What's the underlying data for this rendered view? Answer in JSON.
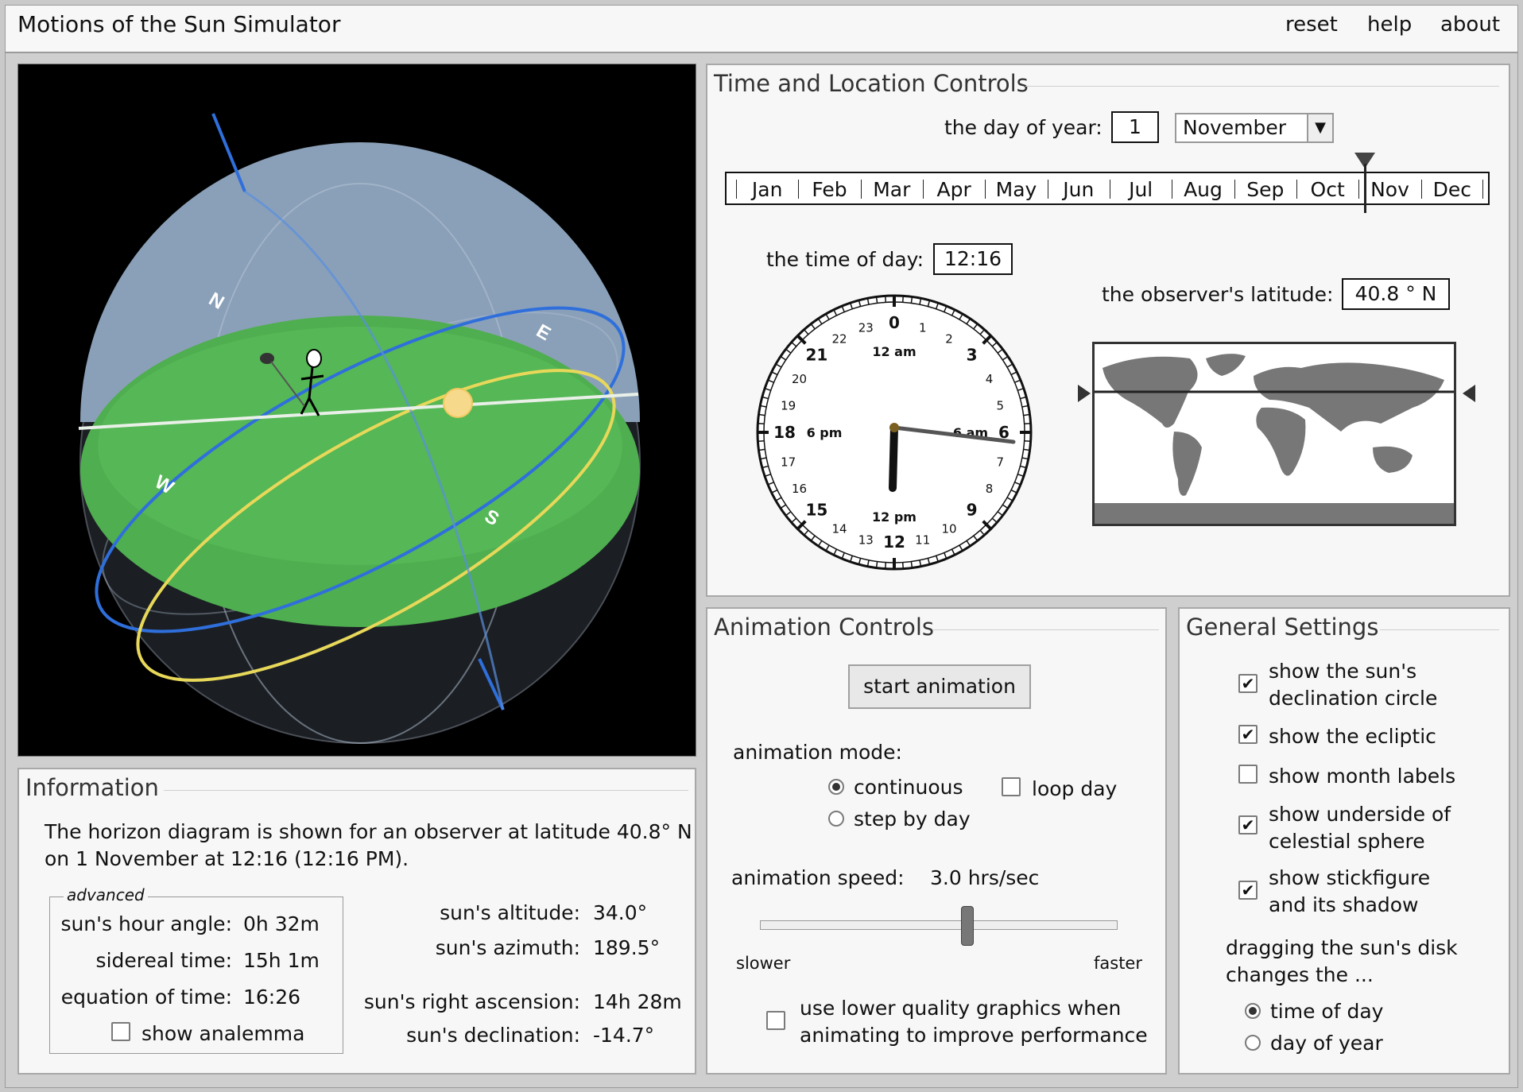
{
  "app": {
    "title": "Motions of the Sun Simulator",
    "nav": {
      "reset": "reset",
      "help": "help",
      "about": "about"
    }
  },
  "view3d": {
    "directions": {
      "n": "N",
      "e": "E",
      "s": "S",
      "w": "W"
    }
  },
  "time_location": {
    "title": "Time and Location Controls",
    "day_label": "the day of year:",
    "day_value": "1",
    "month_selected": "November",
    "months": [
      "Jan",
      "Feb",
      "Mar",
      "Apr",
      "May",
      "Jun",
      "Jul",
      "Aug",
      "Sep",
      "Oct",
      "Nov",
      "Dec"
    ],
    "time_label": "the time of day:",
    "time_value": "12:16",
    "latitude_label": "the observer's latitude:",
    "latitude_value": "40.8 ° N",
    "clock": {
      "hour_numbers": [
        "0",
        "1",
        "2",
        "3",
        "4",
        "5",
        "6",
        "7",
        "8",
        "9",
        "10",
        "11",
        "12",
        "13",
        "14",
        "15",
        "16",
        "17",
        "18",
        "19",
        "20",
        "21",
        "22",
        "23"
      ],
      "labels": {
        "am12": "12 am",
        "am6": "6 am",
        "pm12": "12 pm",
        "pm6": "6 pm"
      }
    }
  },
  "animation": {
    "title": "Animation Controls",
    "start_button": "start animation",
    "mode_label": "animation mode:",
    "continuous": "continuous",
    "step_by_day": "step by day",
    "loop_day": "loop day",
    "speed_label": "animation speed:",
    "speed_value": "3.0 hrs/sec",
    "speed_fraction": 0.58,
    "slower": "slower",
    "faster": "faster",
    "low_quality_1": "use lower quality graphics when",
    "low_quality_2": "animating to improve performance"
  },
  "general": {
    "title": "General Settings",
    "opt1a": "show the sun's",
    "opt1b": "declination circle",
    "opt2": "show the ecliptic",
    "opt3": "show month labels",
    "opt4a": "show underside of",
    "opt4b": "celestial sphere",
    "opt5a": "show stickfigure",
    "opt5b": "and its shadow",
    "drag_a": "dragging the sun's disk",
    "drag_b": "changes the ...",
    "drag_time": "time of day",
    "drag_year": "day of year",
    "checkmark": "✔"
  },
  "information": {
    "title": "Information",
    "desc1": "The horizon diagram is shown for an observer at latitude 40.8° N",
    "desc2": "on 1 November at 12:16 (12:16 PM).",
    "advanced": "advanced",
    "hour_angle_label": "sun's hour angle:",
    "hour_angle": "0h 32m",
    "sidereal_label": "sidereal time:",
    "sidereal": "15h 1m",
    "eot_label": "equation of time:",
    "eot": "16:26",
    "analemma": "show analemma",
    "altitude_label": "sun's altitude:",
    "altitude": "34.0°",
    "azimuth_label": "sun's azimuth:",
    "azimuth": "189.5°",
    "ra_label": "sun's right ascension:",
    "ra": "14h 28m",
    "dec_label": "sun's declination:",
    "dec": "-14.7°"
  },
  "colors": {
    "accent_blue": "#2f6fdc",
    "ecliptic_yellow": "#e8d85a",
    "horizon_green": "#4fae4f",
    "sun": "#f6d98a"
  }
}
